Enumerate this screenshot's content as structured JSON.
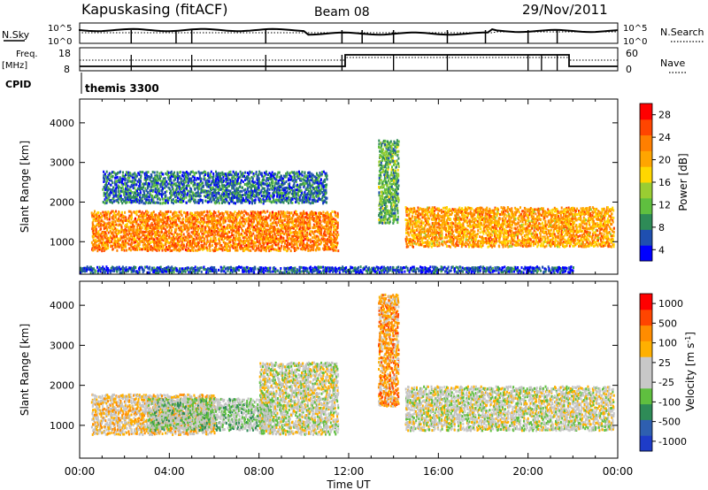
{
  "header": {
    "station": "Kapuskasing (fitACF)",
    "beam": "Beam 08",
    "date": "29/Nov/2011"
  },
  "summary_panels": {
    "nsky_label": "N.Sky",
    "nsky_ticks": [
      "10^5",
      "10^0"
    ],
    "nsearch_label": "N.Search",
    "nsearch_ticks": [
      "10^5",
      "10^0"
    ],
    "freq_label": "Freq.",
    "freq_unit": "[MHz]",
    "freq_ticks": [
      "18",
      "8"
    ],
    "nave_label": "Nave",
    "nave_ticks": [
      "60",
      "0"
    ],
    "cpid_label": "CPID",
    "cpid_value": "themis 3300"
  },
  "colors": {
    "power_scale": [
      "#0000ff",
      "#1f4fb0",
      "#2e8b57",
      "#5fbf3f",
      "#9acd32",
      "#ffd700",
      "#ffa500",
      "#ff7f00",
      "#ff4500",
      "#ff0000"
    ],
    "velocity_scale": [
      "#1e3cc8",
      "#2e5fb0",
      "#2e8b57",
      "#5fbf3f",
      "#c8c8c8",
      "#c8c8c8",
      "#ffb000",
      "#ff8c00",
      "#ff4500",
      "#ff0000"
    ],
    "ground_scatter": "#c0c0c0"
  },
  "chart_data": [
    {
      "type": "heatmap",
      "title": "",
      "ylabel": "Slant Range [km]",
      "xlabel": "Time UT",
      "xlim": [
        "00:00",
        "00:00"
      ],
      "ylim": [
        180,
        4600
      ],
      "x_tick_labels": [
        "00:00",
        "04:00",
        "08:00",
        "12:00",
        "16:00",
        "20:00",
        "00:00"
      ],
      "y_tick_labels": [
        "1000",
        "2000",
        "3000",
        "4000"
      ],
      "colorbar": {
        "label": "Power [dB]",
        "ticks": [
          "28",
          "24",
          "20",
          "16",
          "12",
          "8",
          "4"
        ],
        "range": [
          0,
          30
        ]
      },
      "regions": [
        {
          "t_start": 0.5,
          "t_end": 11.5,
          "r_min": 800,
          "r_max": 1800,
          "value": 22
        },
        {
          "t_start": 1.0,
          "t_end": 11.0,
          "r_min": 2000,
          "r_max": 2800,
          "value": 6
        },
        {
          "t_start": 14.5,
          "t_end": 23.8,
          "r_min": 900,
          "r_max": 1900,
          "value": 20
        },
        {
          "t_start": 13.3,
          "t_end": 14.2,
          "r_min": 1500,
          "r_max": 3600,
          "value": 10
        },
        {
          "t_start": 0.0,
          "t_end": 22.0,
          "r_min": 250,
          "r_max": 400,
          "value": 4
        }
      ]
    },
    {
      "type": "heatmap",
      "title": "",
      "ylabel": "Slant Range [km]",
      "xlabel": "Time UT",
      "xlim": [
        "00:00",
        "00:00"
      ],
      "ylim": [
        180,
        4600
      ],
      "x_tick_labels": [
        "00:00",
        "04:00",
        "08:00",
        "12:00",
        "16:00",
        "20:00",
        "00:00"
      ],
      "y_tick_labels": [
        "1000",
        "2000",
        "3000",
        "4000"
      ],
      "colorbar": {
        "label": "Velocity [m s^-1]",
        "ticks": [
          "1000",
          "500",
          "100",
          "25",
          "-25",
          "-100",
          "-500",
          "-1000"
        ],
        "range": [
          -1000,
          1000
        ]
      },
      "regions": [
        {
          "t_start": 0.5,
          "t_end": 6.0,
          "r_min": 800,
          "r_max": 1800,
          "value": -200
        },
        {
          "t_start": 3.0,
          "t_end": 8.5,
          "r_min": 900,
          "r_max": 1700,
          "value": 150
        },
        {
          "t_start": 8.0,
          "t_end": 11.5,
          "r_min": 800,
          "r_max": 2600,
          "value": 0
        },
        {
          "t_start": 14.5,
          "t_end": 23.8,
          "r_min": 900,
          "r_max": 2000,
          "value": 0
        },
        {
          "t_start": 13.3,
          "t_end": 14.2,
          "r_min": 1500,
          "r_max": 4300,
          "value": -400
        }
      ]
    }
  ]
}
